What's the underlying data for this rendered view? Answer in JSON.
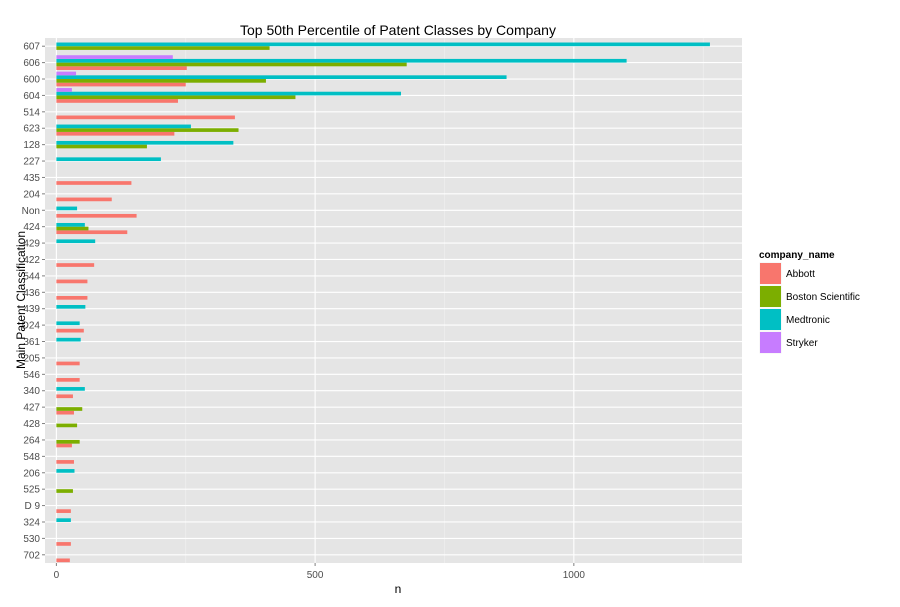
{
  "chart_data": {
    "type": "bar",
    "orientation": "horizontal",
    "title": "Top 50th Percentile of Patent Classes by Company",
    "xlabel": "n",
    "ylabel": "Main Patent Classification",
    "xlim": [
      -22,
      1325
    ],
    "x_ticks": [
      0,
      500,
      1000
    ],
    "x_tick_labels": [
      "0",
      "500",
      "1000"
    ],
    "grid": true,
    "legend_position": "right",
    "legend_title": "company_name",
    "categories": [
      "607",
      "606",
      "600",
      "604",
      "514",
      "623",
      "128",
      "227",
      "435",
      "204",
      "Non",
      "424",
      "429",
      "422",
      "544",
      "436",
      "439",
      "D24",
      "361",
      "205",
      "546",
      "340",
      "427",
      "428",
      "264",
      "548",
      "206",
      "525",
      "D 9",
      "324",
      "530",
      "702"
    ],
    "series": [
      {
        "name": "Abbott",
        "color": "#F8766D",
        "values": [
          0,
          252,
          250,
          235,
          345,
          228,
          0,
          0,
          145,
          107,
          155,
          137,
          0,
          73,
          60,
          60,
          0,
          53,
          0,
          45,
          45,
          32,
          34,
          0,
          30,
          34,
          0,
          0,
          28,
          0,
          28,
          26
        ]
      },
      {
        "name": "Boston Scientific",
        "color": "#7CAE00",
        "values": [
          412,
          677,
          405,
          462,
          0,
          352,
          175,
          0,
          0,
          0,
          0,
          62,
          0,
          0,
          0,
          0,
          0,
          0,
          0,
          0,
          0,
          0,
          50,
          40,
          45,
          0,
          0,
          32,
          0,
          0,
          0,
          0
        ]
      },
      {
        "name": "Medtronic",
        "color": "#00BFC4",
        "values": [
          1263,
          1102,
          870,
          666,
          0,
          260,
          342,
          202,
          0,
          0,
          40,
          55,
          75,
          0,
          0,
          0,
          56,
          45,
          47,
          0,
          0,
          55,
          0,
          0,
          0,
          0,
          35,
          0,
          0,
          28,
          0,
          0
        ]
      },
      {
        "name": "Stryker",
        "color": "#C77CFF",
        "values": [
          0,
          225,
          38,
          30,
          0,
          0,
          0,
          0,
          0,
          0,
          0,
          0,
          0,
          0,
          0,
          0,
          0,
          0,
          0,
          0,
          0,
          0,
          0,
          0,
          0,
          0,
          0,
          0,
          0,
          0,
          0,
          0
        ]
      }
    ]
  }
}
